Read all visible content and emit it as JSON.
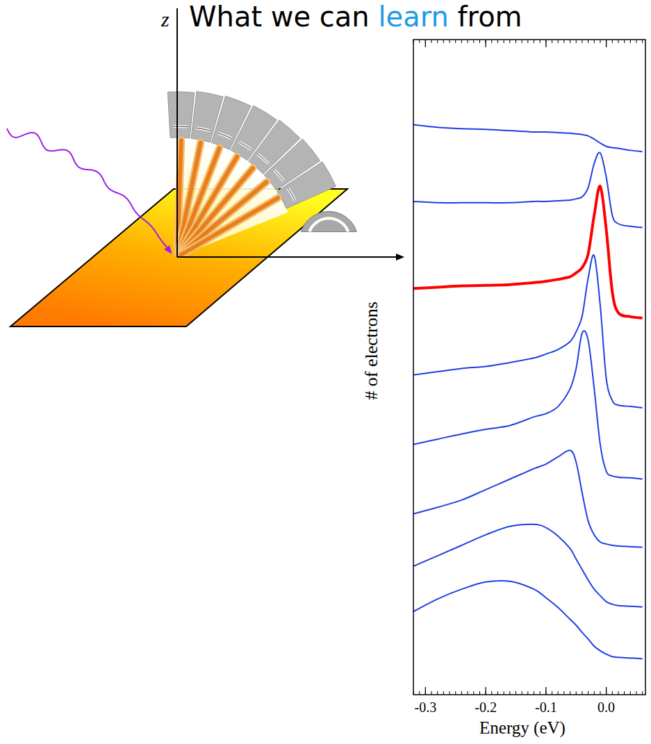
{
  "header": {
    "title_parts": [
      {
        "text": "What we can",
        "color": "#000000"
      },
      {
        "text": "learn",
        "color": "#1e9be6"
      },
      {
        "text": "from",
        "color": "#000000"
      }
    ]
  },
  "diagram": {
    "axis_label": "z"
  },
  "chart_data": {
    "type": "line",
    "x_label": "Energy (eV)",
    "y_label": "# of electrons",
    "x": [
      -0.32,
      -0.28,
      -0.24,
      -0.2,
      -0.16,
      -0.12,
      -0.1,
      -0.08,
      -0.06,
      -0.05,
      -0.04,
      -0.03,
      -0.02,
      -0.01,
      0.0,
      0.01,
      0.02,
      0.04,
      0.06
    ],
    "xlim": [
      -0.32,
      0.065
    ],
    "xticks": [
      -0.3,
      -0.2,
      -0.1,
      {
        "value": 0,
        "label": "0.0"
      }
    ],
    "ylim": [
      0,
      100
    ],
    "tick_labels": "x",
    "grid": false,
    "series": [
      {
        "color": "#1f3fe0",
        "values": [
          87.0,
          86.6,
          86.4,
          86.3,
          86.1,
          85.9,
          85.9,
          85.8,
          85.7,
          85.6,
          85.5,
          85.3,
          84.8,
          84.2,
          83.7,
          83.5,
          83.4,
          83.1,
          82.9
        ]
      },
      {
        "color": "#1f3fe0",
        "values": [
          75.3,
          75.1,
          75.1,
          75.1,
          75.1,
          75.3,
          75.3,
          75.4,
          75.5,
          75.7,
          76.0,
          77.4,
          81.1,
          82.7,
          79.0,
          73.2,
          71.9,
          71.5,
          71.3
        ]
      },
      {
        "color": "#ff0000",
        "line_style": "thick",
        "values": [
          62.0,
          62.2,
          62.4,
          62.5,
          62.6,
          62.9,
          63.1,
          63.4,
          63.8,
          64.4,
          65.2,
          67.3,
          73.2,
          77.6,
          71.0,
          61.5,
          58.3,
          57.7,
          57.5
        ]
      },
      {
        "color": "#1f3fe0",
        "values": [
          48.8,
          49.3,
          49.8,
          50.1,
          50.7,
          51.4,
          52.0,
          52.7,
          53.9,
          55.4,
          57.8,
          63.6,
          67.0,
          59.4,
          48.3,
          44.9,
          44.2,
          44.0,
          43.8
        ]
      },
      {
        "color": "#1f3fe0",
        "values": [
          38.2,
          39.0,
          39.8,
          40.5,
          41.1,
          42.4,
          42.9,
          44.0,
          46.7,
          49.8,
          55.2,
          54.1,
          46.7,
          38.2,
          34.1,
          33.4,
          33.2,
          33.1,
          32.9
        ]
      },
      {
        "color": "#1f3fe0",
        "values": [
          27.6,
          28.6,
          29.7,
          31.3,
          32.9,
          34.5,
          35.2,
          36.3,
          37.3,
          35.5,
          30.8,
          26.5,
          24.4,
          23.3,
          23.0,
          22.8,
          22.7,
          22.6,
          22.5
        ]
      },
      {
        "color": "#1f3fe0",
        "values": [
          19.6,
          21.2,
          22.8,
          24.4,
          25.7,
          26.0,
          25.5,
          24.2,
          22.3,
          20.7,
          19.1,
          17.5,
          16.1,
          15.1,
          14.2,
          13.8,
          13.6,
          13.5,
          13.4
        ]
      },
      {
        "color": "#1f3fe0",
        "values": [
          12.7,
          14.6,
          16.1,
          17.2,
          17.3,
          16.1,
          14.8,
          13.3,
          11.5,
          10.6,
          9.5,
          8.5,
          7.4,
          6.7,
          6.2,
          5.8,
          5.7,
          5.6,
          5.5
        ]
      }
    ]
  }
}
